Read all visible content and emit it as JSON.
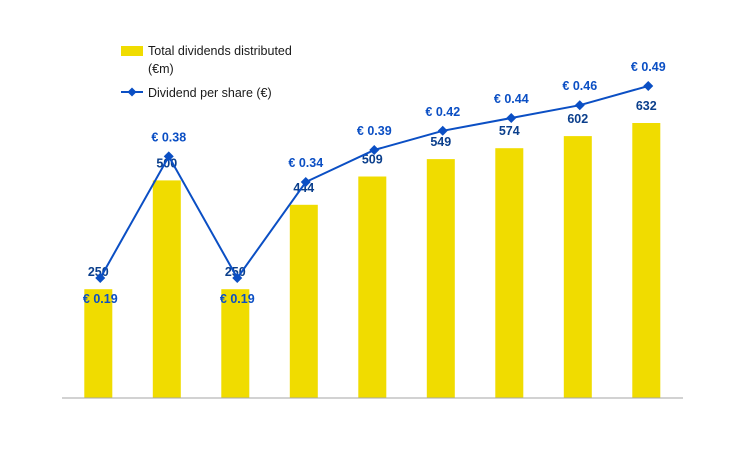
{
  "chart_data": {
    "type": "bar",
    "categories": [
      "",
      "",
      "",
      "",
      "",
      "",
      "",
      "",
      ""
    ],
    "title": "",
    "xlabel": "",
    "ylabel": "",
    "grid": false,
    "legend_position": "top-left",
    "series": [
      {
        "name": "Total dividends distributed (€m)",
        "legend_lines": [
          "Total dividends distributed",
          "(€m)"
        ],
        "type": "bar",
        "color": "#f0dc00",
        "values": [
          250,
          500,
          250,
          444,
          509,
          549,
          574,
          602,
          632
        ],
        "labels": [
          "250",
          "500",
          "250",
          "444",
          "509",
          "549",
          "574",
          "602",
          "632"
        ],
        "ylim": [
          0,
          700
        ]
      },
      {
        "name": "Dividend per share (€)",
        "legend_lines": [
          "Dividend per share (€)"
        ],
        "type": "line",
        "marker": "diamond",
        "color": "#0b4fc4",
        "values": [
          0.19,
          0.38,
          0.19,
          0.34,
          0.39,
          0.42,
          0.44,
          0.46,
          0.49
        ],
        "labels": [
          "€ 0.19",
          "€ 0.38",
          "€ 0.19",
          "€ 0.34",
          "€ 0.39",
          "€ 0.42",
          "€ 0.44",
          "€ 0.46",
          "€ 0.49"
        ],
        "label_positions": [
          "below",
          "above",
          "below",
          "above",
          "above",
          "above",
          "above",
          "above",
          "above"
        ],
        "ylim": [
          0,
          0.5
        ]
      }
    ]
  }
}
